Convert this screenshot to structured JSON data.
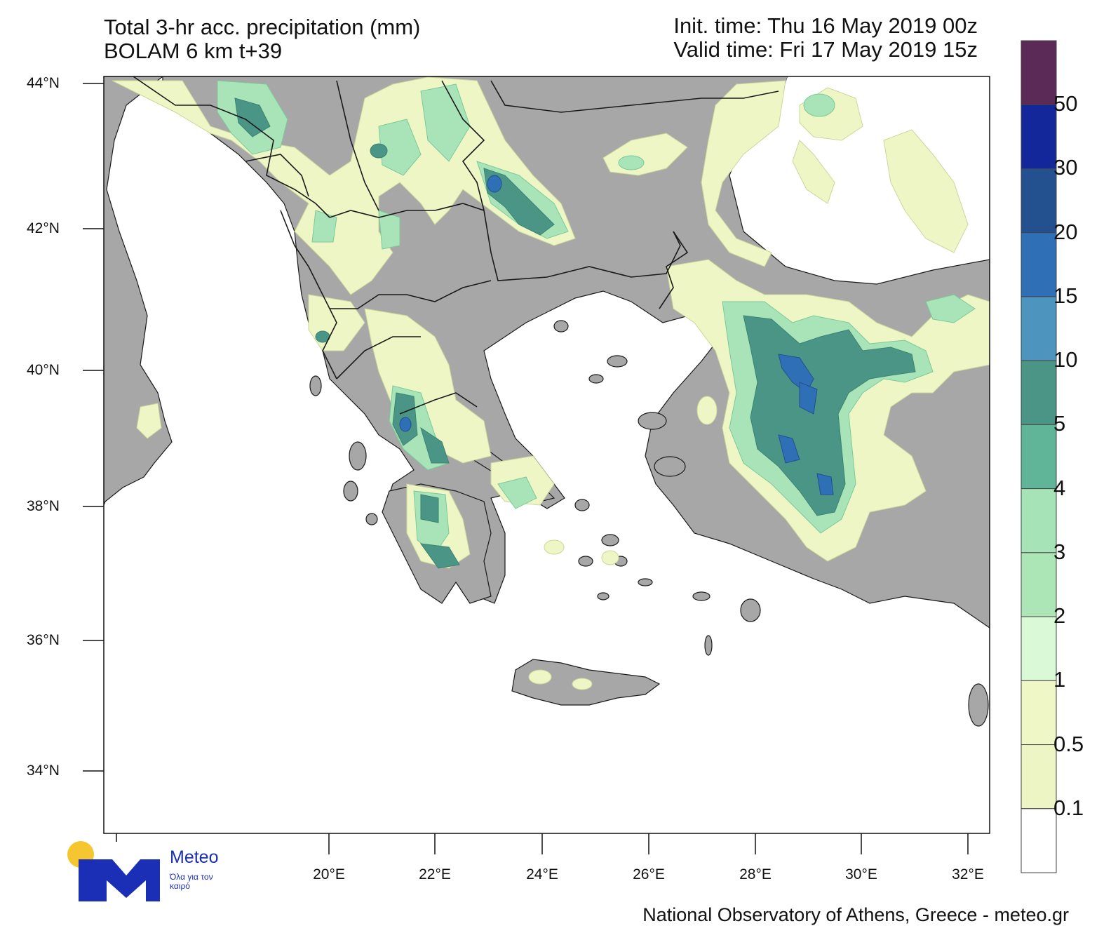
{
  "header": {
    "title_line1": "Total 3-hr acc. precipitation (mm)",
    "title_line2": "BOLAM 6 km t+39",
    "init_time": "Init. time: Thu 16 May 2019 00z",
    "valid_time": "Valid time: Fri 17 May 2019 15z"
  },
  "axes": {
    "lat_labels": [
      "44°N",
      "42°N",
      "40°N",
      "38°N",
      "36°N",
      "34°N"
    ],
    "lon_labels": [
      "20°E",
      "22°E",
      "24°E",
      "26°E",
      "28°E",
      "30°E",
      "32°E"
    ]
  },
  "legend": {
    "levels": [
      "50",
      "30",
      "20",
      "15",
      "10",
      "5",
      "4",
      "3",
      "2",
      "1",
      "0.5",
      "0.1"
    ],
    "colors": [
      "#5b2a57",
      "#13279a",
      "#23508f",
      "#2f6fb6",
      "#4d95bf",
      "#4a9585",
      "#60b497",
      "#a6e4b8",
      "#ace6b7",
      "#d9f9d7",
      "#f0f7c7",
      "#eef5c4",
      "#ffffff"
    ]
  },
  "colors": {
    "land": "#a7a7a7",
    "sea": "#ffffff",
    "border": "#1a1a1a"
  },
  "logo": {
    "word": "Meteo",
    "tagline": "Όλα για τον καιρό",
    "icon": "meteo-m-logo-icon"
  },
  "footer": {
    "credit": "National Observatory of Athens, Greece - meteo.gr"
  }
}
